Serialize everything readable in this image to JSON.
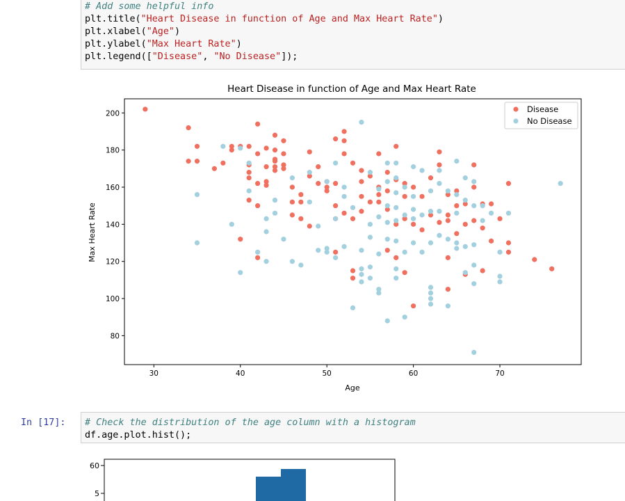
{
  "cell1": {
    "line1": "# Add some helpful info",
    "line2_fn": "plt.title(",
    "line2_str": "\"Heart Disease in function of Age and Max Heart Rate\"",
    "line2_end": ")",
    "line3_fn": "plt.xlabel(",
    "line3_str": "\"Age\"",
    "line3_end": ")",
    "line4_fn": "plt.ylabel(",
    "line4_str": "\"Max Heart Rate\"",
    "line4_end": ")",
    "line5_fn": "plt.legend([",
    "line5_str1": "\"Disease\"",
    "line5_sep": ", ",
    "line5_str2": "\"No Disease\"",
    "line5_end": "]);"
  },
  "cell2": {
    "prompt": "In [17]:",
    "line1": "# Check the distribution of the age column with a histogram",
    "line2": "df.age.plot.hist();"
  },
  "colors": {
    "disease": "#f07060",
    "no_disease": "#a2d0df",
    "hist": "#1f6aa5",
    "prompt": "#303f9f"
  },
  "chart_data": [
    {
      "type": "scatter",
      "title": "Heart Disease in function of Age and Max Heart Rate",
      "xlabel": "Age",
      "ylabel": "Max Heart Rate",
      "xlim": [
        26.6,
        79.4
      ],
      "ylim": [
        64.4,
        207.6
      ],
      "xticks": [
        30,
        40,
        50,
        60,
        70
      ],
      "yticks": [
        80,
        100,
        120,
        140,
        160,
        180,
        200
      ],
      "legend": "top-right",
      "series": [
        {
          "name": "Disease",
          "color": "#f07060",
          "points": [
            [
              29,
              202
            ],
            [
              34,
              192
            ],
            [
              34,
              174
            ],
            [
              35,
              174
            ],
            [
              35,
              182
            ],
            [
              37,
              170
            ],
            [
              38,
              173
            ],
            [
              39,
              182
            ],
            [
              39,
              180
            ],
            [
              40,
              182
            ],
            [
              41,
              172
            ],
            [
              41,
              182
            ],
            [
              42,
              194
            ],
            [
              41,
              168
            ],
            [
              42,
              178
            ],
            [
              43,
              181
            ],
            [
              42,
              162
            ],
            [
              43,
              171
            ],
            [
              44,
              180
            ],
            [
              44,
              188
            ],
            [
              44,
              174
            ],
            [
              45,
              185
            ],
            [
              45,
              172
            ],
            [
              43,
              163
            ],
            [
              42,
              150
            ],
            [
              41,
              165
            ],
            [
              41,
              153
            ],
            [
              43,
              161
            ],
            [
              44,
              175
            ],
            [
              44,
              169
            ],
            [
              45,
              170
            ],
            [
              46,
              160
            ],
            [
              46,
              152
            ],
            [
              47,
              156
            ],
            [
              48,
              179
            ],
            [
              48,
              166
            ],
            [
              49,
              171
            ],
            [
              50,
              158
            ],
            [
              50,
              160
            ],
            [
              51,
              186
            ],
            [
              51,
              162
            ],
            [
              52,
              190
            ],
            [
              52,
              185
            ],
            [
              52,
              178
            ],
            [
              53,
              173
            ],
            [
              54,
              163
            ],
            [
              54,
              169
            ],
            [
              54,
              155
            ],
            [
              55,
              166
            ],
            [
              56,
              178
            ],
            [
              56,
              160
            ],
            [
              57,
              158
            ],
            [
              57,
              168
            ],
            [
              58,
              164
            ],
            [
              58,
              182
            ],
            [
              59,
              162
            ],
            [
              59,
              155
            ],
            [
              60,
              160
            ],
            [
              61,
              155
            ],
            [
              62,
              165
            ],
            [
              63,
              179
            ],
            [
              63,
              172
            ],
            [
              64,
              156
            ],
            [
              64,
              145
            ],
            [
              65,
              158
            ],
            [
              65,
              150
            ],
            [
              66,
              151
            ],
            [
              67,
              172
            ],
            [
              67,
              160
            ],
            [
              68,
              151
            ],
            [
              69,
              151
            ],
            [
              71,
              162
            ],
            [
              46,
              145
            ],
            [
              47,
              152
            ],
            [
              47,
              143
            ],
            [
              48,
              139
            ],
            [
              51,
              150
            ],
            [
              51,
              143
            ],
            [
              52,
              146
            ],
            [
              53,
              143
            ],
            [
              54,
              147
            ],
            [
              56,
              156
            ],
            [
              57,
              148
            ],
            [
              58,
              140
            ],
            [
              59,
              143
            ],
            [
              60,
              140
            ],
            [
              61,
              137
            ],
            [
              62,
              145
            ],
            [
              63,
              141
            ],
            [
              64,
              142
            ],
            [
              65,
              135
            ],
            [
              66,
              140
            ],
            [
              67,
              142
            ],
            [
              68,
              138
            ],
            [
              69,
              131
            ],
            [
              70,
              143
            ],
            [
              71,
              130
            ],
            [
              71,
              125
            ],
            [
              74,
              121
            ],
            [
              76,
              116
            ],
            [
              40,
              132
            ],
            [
              42,
              122
            ],
            [
              51,
              125
            ],
            [
              53,
              115
            ],
            [
              53,
              111
            ],
            [
              57,
              126
            ],
            [
              58,
              122
            ],
            [
              59,
              114
            ],
            [
              60,
              96
            ],
            [
              64,
              122
            ],
            [
              64,
              105
            ],
            [
              66,
              113
            ],
            [
              68,
              115
            ],
            [
              55,
              152
            ],
            [
              56,
              152
            ],
            [
              50,
              163
            ],
            [
              49,
              162
            ],
            [
              45,
              178
            ],
            [
              44,
              171
            ]
          ]
        },
        {
          "name": "No Disease",
          "color": "#a2d0df",
          "points": [
            [
              35,
              156
            ],
            [
              35,
              130
            ],
            [
              38,
              182
            ],
            [
              40,
              181
            ],
            [
              40,
              114
            ],
            [
              39,
              140
            ],
            [
              41,
              158
            ],
            [
              41,
              173
            ],
            [
              42,
              125
            ],
            [
              43,
              120
            ],
            [
              43,
              143
            ],
            [
              43,
              136
            ],
            [
              44,
              146
            ],
            [
              44,
              153
            ],
            [
              45,
              132
            ],
            [
              46,
              120
            ],
            [
              46,
              165
            ],
            [
              47,
              118
            ],
            [
              48,
              168
            ],
            [
              48,
              152
            ],
            [
              49,
              139
            ],
            [
              49,
              126
            ],
            [
              50,
              163
            ],
            [
              50,
              127
            ],
            [
              50,
              125
            ],
            [
              51,
              173
            ],
            [
              51,
              122
            ],
            [
              51,
              143
            ],
            [
              52,
              160
            ],
            [
              52,
              155
            ],
            [
              52,
              128
            ],
            [
              53,
              149
            ],
            [
              53,
              95
            ],
            [
              54,
              195
            ],
            [
              54,
              126
            ],
            [
              54,
              116
            ],
            [
              54,
              113
            ],
            [
              54,
              109
            ],
            [
              55,
              168
            ],
            [
              55,
              140
            ],
            [
              55,
              133
            ],
            [
              55,
              117
            ],
            [
              55,
              111
            ],
            [
              56,
              159
            ],
            [
              56,
              144
            ],
            [
              56,
              124
            ],
            [
              56,
              105
            ],
            [
              56,
              103
            ],
            [
              57,
              173
            ],
            [
              57,
              163
            ],
            [
              57,
              150
            ],
            [
              57,
              141
            ],
            [
              57,
              132
            ],
            [
              57,
              88
            ],
            [
              58,
              173
            ],
            [
              58,
              165
            ],
            [
              58,
              157
            ],
            [
              58,
              149
            ],
            [
              58,
              142
            ],
            [
              58,
              131
            ],
            [
              58,
              116
            ],
            [
              58,
              111
            ],
            [
              59,
              160
            ],
            [
              59,
              145
            ],
            [
              59,
              125
            ],
            [
              59,
              90
            ],
            [
              60,
              171
            ],
            [
              60,
              155
            ],
            [
              60,
              148
            ],
            [
              60,
              143
            ],
            [
              60,
              130
            ],
            [
              61,
              169
            ],
            [
              61,
              145
            ],
            [
              61,
              125
            ],
            [
              62,
              158
            ],
            [
              62,
              147
            ],
            [
              62,
              130
            ],
            [
              62,
              106
            ],
            [
              62,
              103
            ],
            [
              62,
              100
            ],
            [
              62,
              97
            ],
            [
              63,
              162
            ],
            [
              63,
              147
            ],
            [
              63,
              134
            ],
            [
              63,
              169
            ],
            [
              64,
              158
            ],
            [
              64,
              132
            ],
            [
              64,
              96
            ],
            [
              65,
              174
            ],
            [
              65,
              156
            ],
            [
              65,
              146
            ],
            [
              65,
              130
            ],
            [
              65,
              127
            ],
            [
              66,
              165
            ],
            [
              66,
              153
            ],
            [
              66,
              128
            ],
            [
              66,
              114
            ],
            [
              67,
              163
            ],
            [
              67,
              150
            ],
            [
              67,
              129
            ],
            [
              67,
              118
            ],
            [
              67,
              108
            ],
            [
              67,
              71
            ],
            [
              68,
              150
            ],
            [
              68,
              142
            ],
            [
              69,
              146
            ],
            [
              70,
              125
            ],
            [
              70,
              112
            ],
            [
              70,
              109
            ],
            [
              71,
              146
            ],
            [
              77,
              162
            ]
          ]
        }
      ]
    },
    {
      "type": "histogram",
      "yticks": [
        60
      ],
      "visible_bins": [
        60,
        65
      ]
    }
  ]
}
